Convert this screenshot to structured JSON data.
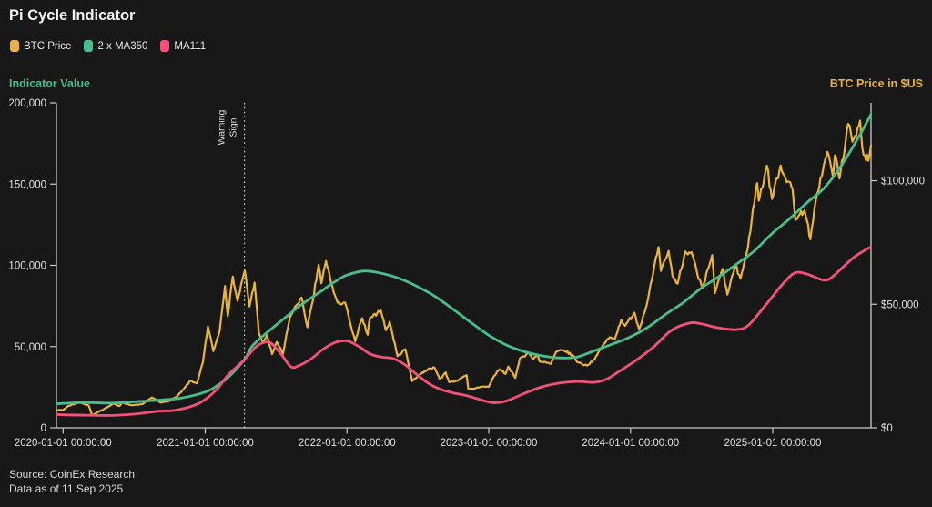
{
  "title": "Pi Cycle Indicator",
  "legend": [
    {
      "label": "BTC Price",
      "color": "#E8B43E"
    },
    {
      "label": "2 x MA350",
      "color": "#49BE8D"
    },
    {
      "label": "MA111",
      "color": "#F3517B"
    }
  ],
  "footer": {
    "source": "Source: CoinEx Research",
    "as_of": "Data as of 11 Sep 2025"
  },
  "colors": {
    "background": "#181818",
    "axis": "#C9C9C9",
    "annotation_line": "#D8D8D8"
  },
  "chart_data": {
    "type": "line",
    "title": "Pi Cycle Indicator",
    "grid": false,
    "legend_position": "top-left",
    "x_axis": {
      "range": [
        "2019-12-15",
        "2025-09-11"
      ],
      "ticks": [
        {
          "date": "2020-01-01",
          "label": "2020-01-01 00:00:00"
        },
        {
          "date": "2021-01-01",
          "label": "2021-01-01 00:00:00"
        },
        {
          "date": "2022-01-01",
          "label": "2022-01-01 00:00:00"
        },
        {
          "date": "2023-01-01",
          "label": "2023-01-01 00:00:00"
        },
        {
          "date": "2024-01-01",
          "label": "2024-01-01 00:00:00"
        },
        {
          "date": "2025-01-01",
          "label": "2025-01-01 00:00:00"
        }
      ]
    },
    "left_axis": {
      "label": "Indicator Value",
      "color": "#49BE8D",
      "range": [
        0,
        200000
      ],
      "ticks": [
        {
          "value": 200000,
          "label": "200,000"
        },
        {
          "value": 150000,
          "label": "150,000"
        },
        {
          "value": 100000,
          "label": "100,000"
        },
        {
          "value": 50000,
          "label": "50,000"
        },
        {
          "value": 0,
          "label": "0"
        }
      ]
    },
    "right_axis": {
      "label": "BTC Price in $US",
      "color": "#E8B43E",
      "range": [
        0,
        131500
      ],
      "ticks": [
        {
          "value": 100000,
          "label": "$100,000"
        },
        {
          "value": 50000,
          "label": "$50,000"
        },
        {
          "value": 0,
          "label": "$0"
        }
      ]
    },
    "annotation": {
      "label": "Warning Sign",
      "date": "2021-04-12"
    },
    "series": [
      {
        "name": "BTC Price",
        "axis": "right",
        "color": "#E8B43E",
        "style": "jagged",
        "points": [
          [
            "2019-12-15",
            7100
          ],
          [
            "2020-01-01",
            7200
          ],
          [
            "2020-01-14",
            8800
          ],
          [
            "2020-02-12",
            10300
          ],
          [
            "2020-03-07",
            9100
          ],
          [
            "2020-03-16",
            5000
          ],
          [
            "2020-03-29",
            6200
          ],
          [
            "2020-04-29",
            8800
          ],
          [
            "2020-05-09",
            9800
          ],
          [
            "2020-05-25",
            8800
          ],
          [
            "2020-06-01",
            10200
          ],
          [
            "2020-06-27",
            9100
          ],
          [
            "2020-07-24",
            9600
          ],
          [
            "2020-08-17",
            12300
          ],
          [
            "2020-09-08",
            10200
          ],
          [
            "2020-09-30",
            10800
          ],
          [
            "2020-10-21",
            12800
          ],
          [
            "2020-11-06",
            15500
          ],
          [
            "2020-11-24",
            19100
          ],
          [
            "2020-12-11",
            18000
          ],
          [
            "2020-12-26",
            26500
          ],
          [
            "2021-01-08",
            41000
          ],
          [
            "2021-01-22",
            31000
          ],
          [
            "2021-02-07",
            39200
          ],
          [
            "2021-02-21",
            57400
          ],
          [
            "2021-02-28",
            45200
          ],
          [
            "2021-03-13",
            61200
          ],
          [
            "2021-03-25",
            51400
          ],
          [
            "2021-04-13",
            63600
          ],
          [
            "2021-04-25",
            49100
          ],
          [
            "2021-05-08",
            58800
          ],
          [
            "2021-05-19",
            38400
          ],
          [
            "2021-05-29",
            34700
          ],
          [
            "2021-06-09",
            37400
          ],
          [
            "2021-06-22",
            29800
          ],
          [
            "2021-07-04",
            34700
          ],
          [
            "2021-07-20",
            29800
          ],
          [
            "2021-08-07",
            44600
          ],
          [
            "2021-08-23",
            49500
          ],
          [
            "2021-09-06",
            52700
          ],
          [
            "2021-09-21",
            40700
          ],
          [
            "2021-10-05",
            51500
          ],
          [
            "2021-10-20",
            66000
          ],
          [
            "2021-10-27",
            58500
          ],
          [
            "2021-11-08",
            67500
          ],
          [
            "2021-11-28",
            54700
          ],
          [
            "2021-12-08",
            50600
          ],
          [
            "2021-12-27",
            50700
          ],
          [
            "2022-01-10",
            41800
          ],
          [
            "2022-01-22",
            35000
          ],
          [
            "2022-02-09",
            44400
          ],
          [
            "2022-02-23",
            37700
          ],
          [
            "2022-03-01",
            44400
          ],
          [
            "2022-03-29",
            47500
          ],
          [
            "2022-04-11",
            39500
          ],
          [
            "2022-04-21",
            42900
          ],
          [
            "2022-05-11",
            29000
          ],
          [
            "2022-05-31",
            31800
          ],
          [
            "2022-06-13",
            22500
          ],
          [
            "2022-06-18",
            18900
          ],
          [
            "2022-07-08",
            21600
          ],
          [
            "2022-07-29",
            23800
          ],
          [
            "2022-08-14",
            24400
          ],
          [
            "2022-08-28",
            19600
          ],
          [
            "2022-09-12",
            22400
          ],
          [
            "2022-09-21",
            18500
          ],
          [
            "2022-10-14",
            19200
          ],
          [
            "2022-11-05",
            21300
          ],
          [
            "2022-11-09",
            15900
          ],
          [
            "2022-11-21",
            15800
          ],
          [
            "2022-12-17",
            16700
          ],
          [
            "2023-01-01",
            16600
          ],
          [
            "2023-01-14",
            20900
          ],
          [
            "2023-01-29",
            23700
          ],
          [
            "2023-02-13",
            21800
          ],
          [
            "2023-02-20",
            24800
          ],
          [
            "2023-03-10",
            20200
          ],
          [
            "2023-03-22",
            28100
          ],
          [
            "2023-04-14",
            30400
          ],
          [
            "2023-04-24",
            27600
          ],
          [
            "2023-05-06",
            29500
          ],
          [
            "2023-05-12",
            26800
          ],
          [
            "2023-06-10",
            25900
          ],
          [
            "2023-06-23",
            30700
          ],
          [
            "2023-07-13",
            31400
          ],
          [
            "2023-08-07",
            29100
          ],
          [
            "2023-08-17",
            26600
          ],
          [
            "2023-09-11",
            25200
          ],
          [
            "2023-10-01",
            27900
          ],
          [
            "2023-10-24",
            33900
          ],
          [
            "2023-11-09",
            36700
          ],
          [
            "2023-11-21",
            35800
          ],
          [
            "2023-12-08",
            43700
          ],
          [
            "2023-12-18",
            41300
          ],
          [
            "2024-01-11",
            46600
          ],
          [
            "2024-01-23",
            39900
          ],
          [
            "2024-02-12",
            49900
          ],
          [
            "2024-02-28",
            62400
          ],
          [
            "2024-03-13",
            73100
          ],
          [
            "2024-03-19",
            63500
          ],
          [
            "2024-04-08",
            71600
          ],
          [
            "2024-04-18",
            61300
          ],
          [
            "2024-05-01",
            58300
          ],
          [
            "2024-05-21",
            71400
          ],
          [
            "2024-06-06",
            71100
          ],
          [
            "2024-06-24",
            60300
          ],
          [
            "2024-07-05",
            56600
          ],
          [
            "2024-07-29",
            69900
          ],
          [
            "2024-08-05",
            54500
          ],
          [
            "2024-08-25",
            64300
          ],
          [
            "2024-09-06",
            53900
          ],
          [
            "2024-09-27",
            65800
          ],
          [
            "2024-10-10",
            60300
          ],
          [
            "2024-10-29",
            72700
          ],
          [
            "2024-11-11",
            88700
          ],
          [
            "2024-11-22",
            99000
          ],
          [
            "2024-11-26",
            91900
          ],
          [
            "2024-12-17",
            106100
          ],
          [
            "2024-12-30",
            92600
          ],
          [
            "2025-01-21",
            106200
          ],
          [
            "2025-01-31",
            102100
          ],
          [
            "2025-02-21",
            96600
          ],
          [
            "2025-02-28",
            84300
          ],
          [
            "2025-03-24",
            88000
          ],
          [
            "2025-04-08",
            76300
          ],
          [
            "2025-04-25",
            94700
          ],
          [
            "2025-05-10",
            104100
          ],
          [
            "2025-05-22",
            111700
          ],
          [
            "2025-06-05",
            101600
          ],
          [
            "2025-06-10",
            110300
          ],
          [
            "2025-06-22",
            100900
          ],
          [
            "2025-07-14",
            123000
          ],
          [
            "2025-07-25",
            115800
          ],
          [
            "2025-08-14",
            124300
          ],
          [
            "2025-08-20",
            112800
          ],
          [
            "2025-08-29",
            108200
          ],
          [
            "2025-09-07",
            110200
          ],
          [
            "2025-09-11",
            114300
          ]
        ]
      },
      {
        "name": "2 x MA350",
        "axis": "left",
        "color": "#49BE8D",
        "style": "smooth",
        "points": [
          [
            "2019-12-15",
            14800
          ],
          [
            "2020-01-01",
            15000
          ],
          [
            "2020-03-01",
            15600
          ],
          [
            "2020-05-01",
            15200
          ],
          [
            "2020-07-01",
            16000
          ],
          [
            "2020-09-01",
            17000
          ],
          [
            "2020-11-01",
            18400
          ],
          [
            "2021-01-01",
            22000
          ],
          [
            "2021-02-01",
            26000
          ],
          [
            "2021-03-01",
            31000
          ],
          [
            "2021-04-12",
            42000
          ],
          [
            "2021-05-01",
            50000
          ],
          [
            "2021-06-01",
            57000
          ],
          [
            "2021-07-01",
            63000
          ],
          [
            "2021-08-01",
            69000
          ],
          [
            "2021-09-01",
            75000
          ],
          [
            "2021-10-01",
            80000
          ],
          [
            "2021-11-01",
            85000
          ],
          [
            "2021-12-01",
            90000
          ],
          [
            "2022-01-01",
            94000
          ],
          [
            "2022-02-15",
            96500
          ],
          [
            "2022-04-01",
            95000
          ],
          [
            "2022-05-15",
            92000
          ],
          [
            "2022-07-01",
            87000
          ],
          [
            "2022-08-15",
            81000
          ],
          [
            "2022-10-01",
            73000
          ],
          [
            "2022-11-15",
            65000
          ],
          [
            "2023-01-01",
            57000
          ],
          [
            "2023-02-15",
            51000
          ],
          [
            "2023-04-01",
            47000
          ],
          [
            "2023-05-15",
            44500
          ],
          [
            "2023-07-01",
            43000
          ],
          [
            "2023-08-15",
            43500
          ],
          [
            "2023-10-01",
            47500
          ],
          [
            "2023-11-15",
            51500
          ],
          [
            "2024-01-01",
            56000
          ],
          [
            "2024-02-15",
            62000
          ],
          [
            "2024-04-01",
            70000
          ],
          [
            "2024-05-15",
            77000
          ],
          [
            "2024-07-01",
            86000
          ],
          [
            "2024-08-15",
            93000
          ],
          [
            "2024-10-01",
            101000
          ],
          [
            "2024-11-15",
            109000
          ],
          [
            "2025-01-01",
            120000
          ],
          [
            "2025-02-15",
            129000
          ],
          [
            "2025-04-01",
            139000
          ],
          [
            "2025-05-15",
            148000
          ],
          [
            "2025-07-01",
            163000
          ],
          [
            "2025-08-15",
            181000
          ],
          [
            "2025-09-11",
            193000
          ]
        ]
      },
      {
        "name": "MA111",
        "axis": "left",
        "color": "#F3517B",
        "style": "smooth",
        "points": [
          [
            "2019-12-15",
            8300
          ],
          [
            "2020-01-01",
            8000
          ],
          [
            "2020-03-01",
            7800
          ],
          [
            "2020-05-01",
            7600
          ],
          [
            "2020-07-01",
            8400
          ],
          [
            "2020-09-01",
            10200
          ],
          [
            "2020-10-15",
            10800
          ],
          [
            "2020-12-01",
            13600
          ],
          [
            "2021-01-01",
            17500
          ],
          [
            "2021-02-01",
            24000
          ],
          [
            "2021-03-01",
            32500
          ],
          [
            "2021-04-12",
            42000
          ],
          [
            "2021-05-10",
            49500
          ],
          [
            "2021-06-01",
            52500
          ],
          [
            "2021-06-20",
            52000
          ],
          [
            "2021-07-15",
            45500
          ],
          [
            "2021-08-10",
            37500
          ],
          [
            "2021-09-01",
            38500
          ],
          [
            "2021-10-01",
            42500
          ],
          [
            "2021-11-01",
            48500
          ],
          [
            "2021-12-01",
            52500
          ],
          [
            "2022-01-01",
            53500
          ],
          [
            "2022-02-01",
            50000
          ],
          [
            "2022-03-01",
            45500
          ],
          [
            "2022-04-01",
            43500
          ],
          [
            "2022-05-01",
            42500
          ],
          [
            "2022-06-01",
            38500
          ],
          [
            "2022-07-01",
            32500
          ],
          [
            "2022-08-01",
            27000
          ],
          [
            "2022-09-01",
            23500
          ],
          [
            "2022-10-01",
            21500
          ],
          [
            "2022-11-01",
            20000
          ],
          [
            "2022-12-01",
            18000
          ],
          [
            "2023-01-10",
            15500
          ],
          [
            "2023-02-15",
            16500
          ],
          [
            "2023-04-01",
            21000
          ],
          [
            "2023-05-15",
            25000
          ],
          [
            "2023-07-01",
            27500
          ],
          [
            "2023-08-15",
            28500
          ],
          [
            "2023-10-01",
            28000
          ],
          [
            "2023-11-01",
            30000
          ],
          [
            "2023-12-01",
            34500
          ],
          [
            "2024-01-15",
            41500
          ],
          [
            "2024-03-01",
            50000
          ],
          [
            "2024-04-15",
            60000
          ],
          [
            "2024-06-01",
            64500
          ],
          [
            "2024-07-01",
            64000
          ],
          [
            "2024-08-15",
            61500
          ],
          [
            "2024-10-01",
            60500
          ],
          [
            "2024-11-01",
            63500
          ],
          [
            "2024-12-15",
            76000
          ],
          [
            "2025-02-01",
            90000
          ],
          [
            "2025-03-01",
            95500
          ],
          [
            "2025-04-01",
            94500
          ],
          [
            "2025-05-10",
            91000
          ],
          [
            "2025-06-01",
            92500
          ],
          [
            "2025-07-01",
            99000
          ],
          [
            "2025-08-01",
            105500
          ],
          [
            "2025-09-11",
            111500
          ]
        ]
      }
    ]
  }
}
